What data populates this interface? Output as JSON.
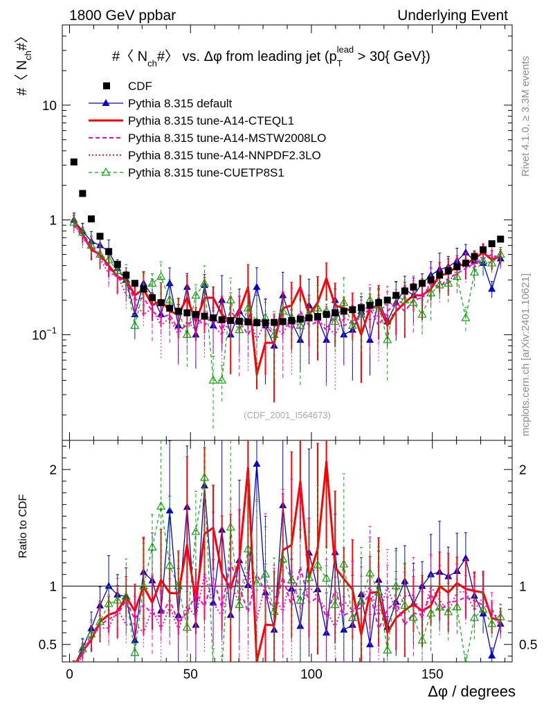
{
  "chart_data": {
    "type": "line",
    "header_left": "1800 GeV ppbar",
    "header_right": "Underlying Event",
    "title": "#〈 N_ch#〉 vs. Δφ from leading jet  (p_T^lead > 30{ GeV})",
    "title_parts": {
      "pre": "#〈 N",
      "sub1": "ch",
      "mid": "#〉 vs. Δφ from leading jet  (p",
      "sub2": "T",
      "sup2": "lead",
      "post": " > 30{ GeV})"
    },
    "ylabel": {
      "pre": "#〈 N",
      "sub": "ch",
      "post": "#〉"
    },
    "ratio_ylabel": "Ratio to CDF",
    "xlabel": "Δφ / degrees",
    "watermark": "(CDF_2001_I564673)",
    "side_text_top": "Rivet 4.1.0, ≥ 3.3M events",
    "side_text_bottom": "mcplots.cern.ch [arXiv:2401.10621]",
    "xlim": [
      -3,
      183
    ],
    "ylim": [
      0.012,
      50
    ],
    "ylog": true,
    "ratio_ylim": [
      0.35,
      2.25
    ],
    "xticks": [
      0,
      50,
      100,
      150
    ],
    "yticks": [
      {
        "value": 0.1,
        "label": "10",
        "sup": "−1"
      },
      {
        "value": 1,
        "label": "1",
        "sup": ""
      },
      {
        "value": 10,
        "label": "10",
        "sup": ""
      }
    ],
    "ratio_yticks": [
      {
        "value": 0.5,
        "label": "0.5"
      },
      {
        "value": 1,
        "label": "1"
      },
      {
        "value": 2,
        "label": "2"
      }
    ],
    "x": [
      1.8,
      5.4,
      9.0,
      12.6,
      16.2,
      19.8,
      23.4,
      27.0,
      30.6,
      34.2,
      37.8,
      41.4,
      45.0,
      48.6,
      52.2,
      55.8,
      59.4,
      63.0,
      66.6,
      70.2,
      73.8,
      77.4,
      81.0,
      84.6,
      88.2,
      91.8,
      95.4,
      99.0,
      102.6,
      106.2,
      109.8,
      113.4,
      117.0,
      120.6,
      124.2,
      127.8,
      131.4,
      135.0,
      138.6,
      142.2,
      145.8,
      149.4,
      153.0,
      156.6,
      160.2,
      163.8,
      167.4,
      171.0,
      174.6,
      178.2
    ],
    "series": [
      {
        "name": "CDF",
        "style": "data",
        "color": "#000000",
        "values": [
          3.2,
          1.7,
          1.02,
          0.72,
          0.53,
          0.41,
          0.33,
          0.28,
          0.25,
          0.21,
          0.19,
          0.17,
          0.16,
          0.155,
          0.15,
          0.145,
          0.14,
          0.135,
          0.133,
          0.131,
          0.129,
          0.127,
          0.127,
          0.128,
          0.13,
          0.133,
          0.137,
          0.14,
          0.144,
          0.15,
          0.155,
          0.16,
          0.165,
          0.172,
          0.18,
          0.19,
          0.2,
          0.22,
          0.24,
          0.26,
          0.28,
          0.3,
          0.33,
          0.36,
          0.39,
          0.42,
          0.48,
          0.55,
          0.62,
          0.68
        ]
      },
      {
        "name": "Pythia 8.315 default",
        "style": "blue",
        "color": "#0000cc",
        "values": [
          1.0,
          0.8,
          0.65,
          0.6,
          0.53,
          0.38,
          0.3,
          0.15,
          0.28,
          0.22,
          0.15,
          0.28,
          0.12,
          0.26,
          0.1,
          0.27,
          0.12,
          0.2,
          0.1,
          0.16,
          0.13,
          0.26,
          0.12,
          0.08,
          0.22,
          0.13,
          0.09,
          0.18,
          0.14,
          0.09,
          0.2,
          0.1,
          0.11,
          0.16,
          0.09,
          0.2,
          0.13,
          0.19,
          0.25,
          0.22,
          0.28,
          0.33,
          0.37,
          0.39,
          0.44,
          0.52,
          0.44,
          0.42,
          0.25,
          0.46
        ]
      },
      {
        "name": "Pythia 8.315 tune-A14-CTEQL1",
        "style": "red",
        "color": "#ff0000",
        "values": [
          1.0,
          0.75,
          0.55,
          0.5,
          0.4,
          0.32,
          0.3,
          0.22,
          0.25,
          0.18,
          0.2,
          0.16,
          0.15,
          0.21,
          0.13,
          0.21,
          0.21,
          0.15,
          0.13,
          0.16,
          0.26,
          0.045,
          0.085,
          0.085,
          0.17,
          0.18,
          0.26,
          0.15,
          0.19,
          0.31,
          0.18,
          0.17,
          0.16,
          0.1,
          0.17,
          0.18,
          0.12,
          0.16,
          0.19,
          0.22,
          0.22,
          0.25,
          0.33,
          0.34,
          0.4,
          0.41,
          0.46,
          0.52,
          0.45,
          0.48
        ]
      },
      {
        "name": "Pythia 8.315 tune-A14-MSTW2008LO",
        "style": "magenta-dash",
        "color": "#ff00cc",
        "values": [
          0.9,
          0.72,
          0.58,
          0.48,
          0.38,
          0.31,
          0.29,
          0.2,
          0.21,
          0.16,
          0.14,
          0.15,
          0.11,
          0.12,
          0.14,
          0.12,
          0.15,
          0.11,
          0.16,
          0.13,
          0.1,
          0.14,
          0.12,
          0.1,
          0.14,
          0.11,
          0.16,
          0.12,
          0.13,
          0.11,
          0.15,
          0.12,
          0.13,
          0.14,
          0.17,
          0.12,
          0.16,
          0.19,
          0.16,
          0.2,
          0.21,
          0.28,
          0.26,
          0.31,
          0.34,
          0.38,
          0.42,
          0.46,
          0.5,
          0.44
        ]
      },
      {
        "name": "Pythia 8.315 tune-A14-NNPDF2.3LO",
        "style": "magenta-dot",
        "color": "#ff00cc",
        "values": [
          0.95,
          0.68,
          0.6,
          0.46,
          0.34,
          0.33,
          0.22,
          0.19,
          0.15,
          0.17,
          0.12,
          0.14,
          0.1,
          0.13,
          0.11,
          0.16,
          0.12,
          0.1,
          0.14,
          0.11,
          0.15,
          0.09,
          0.13,
          0.12,
          0.1,
          0.15,
          0.11,
          0.14,
          0.13,
          0.12,
          0.1,
          0.14,
          0.13,
          0.15,
          0.18,
          0.14,
          0.2,
          0.17,
          0.22,
          0.24,
          0.2,
          0.3,
          0.29,
          0.28,
          0.37,
          0.4,
          0.38,
          0.5,
          0.47,
          0.5
        ]
      },
      {
        "name": "Pythia 8.315 tune-CUETP8S1",
        "style": "green",
        "color": "#00aa00",
        "values": [
          0.95,
          0.78,
          0.6,
          0.5,
          0.45,
          0.36,
          0.3,
          0.12,
          0.25,
          0.28,
          0.32,
          0.2,
          0.16,
          0.1,
          0.22,
          0.28,
          0.04,
          0.04,
          0.2,
          0.11,
          0.17,
          0.13,
          0.14,
          0.1,
          0.16,
          0.14,
          0.12,
          0.15,
          0.17,
          0.16,
          0.13,
          0.19,
          0.12,
          0.15,
          0.2,
          0.18,
          0.09,
          0.22,
          0.2,
          0.19,
          0.15,
          0.23,
          0.27,
          0.28,
          0.32,
          0.14,
          0.35,
          0.44,
          0.42,
          0.5
        ]
      }
    ]
  }
}
